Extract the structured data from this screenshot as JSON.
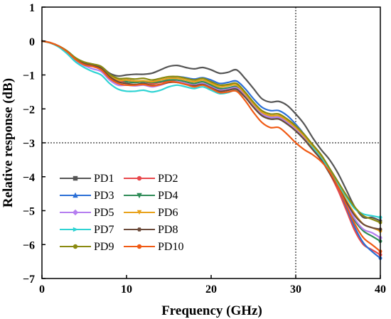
{
  "chart_data": {
    "type": "line",
    "xlabel": "Frequency (GHz)",
    "ylabel": "Relative response (dB)",
    "xlim": [
      0,
      40
    ],
    "ylim": [
      -7,
      1
    ],
    "xticks": [
      0,
      10,
      20,
      30,
      40
    ],
    "yticks": [
      1,
      0,
      -1,
      -2,
      -3,
      -4,
      -5,
      -6,
      -7
    ],
    "grid": false,
    "legend_position": "bottom-left",
    "reference_lines": {
      "x": 30,
      "y": -3
    },
    "x": [
      0,
      1,
      2,
      3,
      4,
      5,
      6,
      7,
      8,
      9,
      10,
      11,
      12,
      13,
      14,
      15,
      16,
      17,
      18,
      19,
      20,
      21,
      22,
      23,
      24,
      25,
      26,
      27,
      28,
      29,
      30,
      31,
      32,
      33,
      34,
      35,
      36,
      37,
      38,
      39,
      40
    ],
    "series": [
      {
        "name": "PD1",
        "color": "#555555",
        "marker": "square",
        "values": [
          0,
          -0.05,
          -0.15,
          -0.3,
          -0.5,
          -0.62,
          -0.68,
          -0.75,
          -0.95,
          -1.03,
          -1.0,
          -0.98,
          -0.98,
          -0.95,
          -0.85,
          -0.75,
          -0.72,
          -0.78,
          -0.82,
          -0.78,
          -0.85,
          -0.95,
          -0.92,
          -0.85,
          -1.1,
          -1.4,
          -1.7,
          -1.8,
          -1.78,
          -1.9,
          -2.15,
          -2.45,
          -2.85,
          -3.2,
          -3.5,
          -3.9,
          -4.4,
          -4.9,
          -5.2,
          -5.2,
          -5.3
        ]
      },
      {
        "name": "PD2",
        "color": "#e8474b",
        "marker": "circle",
        "values": [
          0,
          -0.05,
          -0.15,
          -0.32,
          -0.55,
          -0.68,
          -0.72,
          -0.8,
          -1.05,
          -1.15,
          -1.2,
          -1.22,
          -1.2,
          -1.25,
          -1.22,
          -1.18,
          -1.2,
          -1.25,
          -1.3,
          -1.28,
          -1.35,
          -1.42,
          -1.4,
          -1.38,
          -1.6,
          -1.85,
          -2.1,
          -2.2,
          -2.2,
          -2.35,
          -2.6,
          -2.9,
          -3.2,
          -3.5,
          -3.9,
          -4.4,
          -5.0,
          -5.6,
          -6.0,
          -6.15,
          -6.3
        ]
      },
      {
        "name": "PD3",
        "color": "#2b6fd6",
        "marker": "triangle-up",
        "values": [
          0,
          -0.05,
          -0.15,
          -0.32,
          -0.55,
          -0.68,
          -0.72,
          -0.82,
          -1.05,
          -1.15,
          -1.15,
          -1.18,
          -1.2,
          -1.2,
          -1.15,
          -1.1,
          -1.05,
          -1.08,
          -1.12,
          -1.08,
          -1.15,
          -1.25,
          -1.22,
          -1.18,
          -1.4,
          -1.7,
          -1.95,
          -2.05,
          -2.05,
          -2.2,
          -2.45,
          -2.75,
          -3.1,
          -3.4,
          -3.8,
          -4.3,
          -4.9,
          -5.5,
          -5.95,
          -6.2,
          -6.4
        ]
      },
      {
        "name": "PD4",
        "color": "#2e8b57",
        "marker": "triangle-down",
        "values": [
          0,
          -0.05,
          -0.15,
          -0.3,
          -0.5,
          -0.63,
          -0.7,
          -0.78,
          -1.0,
          -1.1,
          -1.2,
          -1.22,
          -1.2,
          -1.22,
          -1.2,
          -1.15,
          -1.15,
          -1.2,
          -1.25,
          -1.2,
          -1.3,
          -1.4,
          -1.38,
          -1.35,
          -1.6,
          -1.9,
          -2.15,
          -2.25,
          -2.25,
          -2.4,
          -2.6,
          -2.85,
          -3.15,
          -3.45,
          -3.85,
          -4.3,
          -4.8,
          -5.3,
          -5.6,
          -5.75,
          -5.9
        ]
      },
      {
        "name": "PD5",
        "color": "#b57ef0",
        "marker": "diamond",
        "values": [
          0,
          -0.05,
          -0.16,
          -0.35,
          -0.58,
          -0.72,
          -0.82,
          -0.9,
          -1.15,
          -1.3,
          -1.3,
          -1.32,
          -1.3,
          -1.35,
          -1.3,
          -1.22,
          -1.2,
          -1.25,
          -1.3,
          -1.25,
          -1.35,
          -1.45,
          -1.42,
          -1.38,
          -1.6,
          -1.9,
          -2.15,
          -2.25,
          -2.25,
          -2.4,
          -2.6,
          -2.85,
          -3.15,
          -3.45,
          -3.85,
          -4.3,
          -4.8,
          -5.25,
          -5.55,
          -5.65,
          -5.8
        ]
      },
      {
        "name": "PD6",
        "color": "#e8a21a",
        "marker": "tri-down",
        "values": [
          0,
          -0.05,
          -0.15,
          -0.3,
          -0.52,
          -0.64,
          -0.7,
          -0.78,
          -1.02,
          -1.15,
          -1.15,
          -1.18,
          -1.17,
          -1.2,
          -1.15,
          -1.1,
          -1.1,
          -1.15,
          -1.2,
          -1.15,
          -1.25,
          -1.35,
          -1.32,
          -1.3,
          -1.55,
          -1.85,
          -2.1,
          -2.2,
          -2.2,
          -2.35,
          -2.55,
          -2.8,
          -3.1,
          -3.4,
          -3.8,
          -4.25,
          -4.7,
          -5.1,
          -5.4,
          -5.5,
          -5.6
        ]
      },
      {
        "name": "PD7",
        "color": "#2ed3d3",
        "marker": "tri-right",
        "values": [
          0,
          -0.06,
          -0.18,
          -0.38,
          -0.62,
          -0.78,
          -0.9,
          -1.0,
          -1.25,
          -1.42,
          -1.48,
          -1.48,
          -1.45,
          -1.5,
          -1.45,
          -1.35,
          -1.3,
          -1.35,
          -1.4,
          -1.35,
          -1.45,
          -1.55,
          -1.52,
          -1.45,
          -1.65,
          -1.95,
          -2.2,
          -2.3,
          -2.3,
          -2.45,
          -2.65,
          -2.9,
          -3.15,
          -3.45,
          -3.8,
          -4.2,
          -4.6,
          -4.95,
          -5.1,
          -5.15,
          -5.2
        ]
      },
      {
        "name": "PD8",
        "color": "#6b4a3a",
        "marker": "hexagon",
        "values": [
          0,
          -0.05,
          -0.15,
          -0.3,
          -0.52,
          -0.65,
          -0.72,
          -0.8,
          -1.05,
          -1.2,
          -1.25,
          -1.28,
          -1.25,
          -1.3,
          -1.28,
          -1.22,
          -1.22,
          -1.28,
          -1.32,
          -1.28,
          -1.38,
          -1.48,
          -1.45,
          -1.42,
          -1.65,
          -1.95,
          -2.2,
          -2.3,
          -2.3,
          -2.45,
          -2.65,
          -2.9,
          -3.2,
          -3.5,
          -3.9,
          -4.3,
          -4.75,
          -5.15,
          -5.4,
          -5.5,
          -5.55
        ]
      },
      {
        "name": "PD9",
        "color": "#8a8a10",
        "marker": "circle",
        "values": [
          0,
          -0.05,
          -0.15,
          -0.3,
          -0.5,
          -0.62,
          -0.68,
          -0.75,
          -0.98,
          -1.1,
          -1.1,
          -1.12,
          -1.1,
          -1.15,
          -1.1,
          -1.05,
          -1.05,
          -1.1,
          -1.15,
          -1.1,
          -1.2,
          -1.3,
          -1.28,
          -1.25,
          -1.5,
          -1.8,
          -2.05,
          -2.15,
          -2.15,
          -2.3,
          -2.5,
          -2.75,
          -3.05,
          -3.35,
          -3.75,
          -4.15,
          -4.55,
          -4.9,
          -5.15,
          -5.25,
          -5.35
        ]
      },
      {
        "name": "PD10",
        "color": "#f05a14",
        "marker": "circle",
        "values": [
          0,
          -0.05,
          -0.15,
          -0.32,
          -0.55,
          -0.7,
          -0.75,
          -0.85,
          -1.1,
          -1.25,
          -1.3,
          -1.3,
          -1.28,
          -1.32,
          -1.28,
          -1.2,
          -1.22,
          -1.28,
          -1.35,
          -1.3,
          -1.4,
          -1.52,
          -1.5,
          -1.48,
          -1.75,
          -2.1,
          -2.4,
          -2.55,
          -2.55,
          -2.75,
          -3.0,
          -3.2,
          -3.35,
          -3.55,
          -3.85,
          -4.3,
          -4.85,
          -5.4,
          -5.8,
          -6.0,
          -6.2
        ]
      }
    ]
  }
}
